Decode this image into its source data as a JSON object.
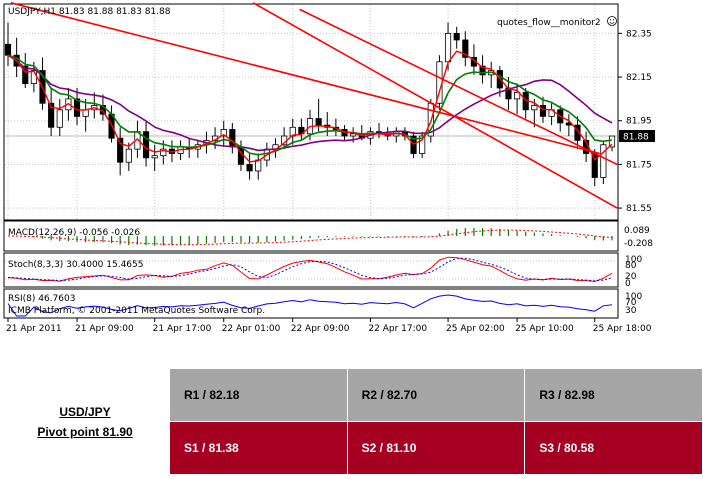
{
  "chart_data": {
    "type": "candlestick",
    "symbol_label": "USDJPY,H1  81.83 81.88 81.83 81.88",
    "watermark": "quotes_flow__monitor2",
    "current_price_label": "81.88",
    "current_price": 81.88,
    "ylim": [
      81.5,
      82.48
    ],
    "price_ticks": [
      "82.35",
      "82.15",
      "81.95",
      "81.75",
      "81.55"
    ],
    "x_ticks": [
      "21 Apr 2011",
      "21 Apr 09:00",
      "21 Apr 17:00",
      "22 Apr 01:00",
      "22 Apr 09:00",
      "22 Apr 17:00",
      "25 Apr 02:00",
      "25 Apr 10:00",
      "25 Apr 18:00"
    ],
    "candles": [
      [
        82.3,
        82.4,
        82.2,
        82.25
      ],
      [
        82.25,
        82.33,
        82.15,
        82.2
      ],
      [
        82.2,
        82.26,
        82.1,
        82.12
      ],
      [
        82.12,
        82.22,
        82.08,
        82.18
      ],
      [
        82.18,
        82.24,
        82.0,
        82.03
      ],
      [
        82.03,
        82.1,
        81.88,
        81.92
      ],
      [
        81.92,
        82.05,
        81.88,
        82.0
      ],
      [
        82.0,
        82.1,
        81.95,
        82.05
      ],
      [
        82.05,
        82.1,
        81.93,
        81.97
      ],
      [
        81.97,
        82.05,
        81.9,
        82.0
      ],
      [
        82.0,
        82.08,
        81.96,
        82.02
      ],
      [
        82.02,
        82.07,
        81.95,
        81.98
      ],
      [
        81.98,
        82.02,
        81.85,
        81.87
      ],
      [
        81.87,
        81.92,
        81.7,
        81.76
      ],
      [
        81.76,
        81.85,
        81.72,
        81.82
      ],
      [
        81.82,
        81.95,
        81.78,
        81.9
      ],
      [
        81.9,
        81.95,
        81.74,
        81.78
      ],
      [
        81.78,
        81.84,
        81.72,
        81.79
      ],
      [
        81.79,
        81.86,
        81.75,
        81.82
      ],
      [
        81.82,
        81.86,
        81.76,
        81.8
      ],
      [
        81.8,
        81.86,
        81.77,
        81.83
      ],
      [
        81.83,
        81.87,
        81.78,
        81.82
      ],
      [
        81.82,
        81.86,
        81.78,
        81.84
      ],
      [
        81.84,
        81.9,
        81.8,
        81.86
      ],
      [
        81.86,
        81.92,
        81.82,
        81.88
      ],
      [
        81.88,
        81.95,
        81.83,
        81.91
      ],
      [
        81.91,
        81.94,
        81.8,
        81.83
      ],
      [
        81.83,
        81.86,
        81.72,
        81.75
      ],
      [
        81.75,
        81.8,
        81.68,
        81.72
      ],
      [
        81.72,
        81.8,
        81.68,
        81.77
      ],
      [
        81.77,
        81.85,
        81.74,
        81.82
      ],
      [
        81.82,
        81.87,
        81.78,
        81.84
      ],
      [
        81.84,
        81.92,
        81.82,
        81.88
      ],
      [
        81.88,
        81.96,
        81.84,
        81.92
      ],
      [
        81.92,
        81.96,
        81.86,
        81.89
      ],
      [
        81.89,
        82.0,
        81.86,
        81.96
      ],
      [
        81.96,
        82.05,
        81.9,
        81.93
      ],
      [
        81.93,
        81.99,
        81.88,
        81.92
      ],
      [
        81.92,
        81.96,
        81.88,
        81.91
      ],
      [
        81.91,
        81.93,
        81.86,
        81.88
      ],
      [
        81.88,
        81.92,
        81.85,
        81.89
      ],
      [
        81.89,
        81.93,
        81.86,
        81.87
      ],
      [
        81.87,
        81.92,
        81.84,
        81.9
      ],
      [
        81.9,
        81.94,
        81.87,
        81.89
      ],
      [
        81.89,
        81.92,
        81.86,
        81.88
      ],
      [
        81.88,
        81.92,
        81.85,
        81.9
      ],
      [
        81.9,
        81.92,
        81.86,
        81.88
      ],
      [
        81.88,
        81.9,
        81.78,
        81.8
      ],
      [
        81.8,
        81.9,
        81.78,
        81.88
      ],
      [
        81.88,
        82.05,
        81.85,
        82.03
      ],
      [
        82.03,
        82.25,
        82.0,
        82.22
      ],
      [
        82.22,
        82.4,
        82.18,
        82.35
      ],
      [
        82.35,
        82.38,
        82.28,
        82.32
      ],
      [
        82.32,
        82.36,
        82.2,
        82.24
      ],
      [
        82.24,
        82.3,
        82.16,
        82.2
      ],
      [
        82.2,
        82.25,
        82.12,
        82.16
      ],
      [
        82.16,
        82.22,
        82.1,
        82.18
      ],
      [
        82.18,
        82.2,
        82.06,
        82.1
      ],
      [
        82.1,
        82.15,
        82.0,
        82.05
      ],
      [
        82.05,
        82.12,
        81.98,
        82.08
      ],
      [
        82.08,
        82.1,
        81.96,
        82.0
      ],
      [
        82.0,
        82.05,
        81.92,
        82.02
      ],
      [
        82.02,
        82.06,
        81.94,
        81.97
      ],
      [
        81.97,
        82.03,
        81.93,
        82.0
      ],
      [
        82.0,
        82.02,
        81.9,
        81.94
      ],
      [
        81.94,
        81.98,
        81.88,
        81.93
      ],
      [
        81.93,
        81.97,
        81.82,
        81.86
      ],
      [
        81.86,
        81.9,
        81.76,
        81.8
      ],
      [
        81.8,
        81.82,
        81.65,
        81.69
      ],
      [
        81.69,
        81.86,
        81.66,
        81.84
      ],
      [
        81.83,
        81.88,
        81.81,
        81.88
      ]
    ],
    "channel_lines": [
      {
        "from": [
          0.33,
          82.49
        ],
        "to": [
          68.6,
          81.8
        ]
      },
      {
        "from": [
          33.8,
          82.46
        ],
        "to": [
          70.6,
          81.75
        ]
      },
      {
        "from": [
          28.4,
          82.49
        ],
        "to": [
          70.6,
          81.55
        ]
      }
    ],
    "macd": {
      "label": "MACD(12,26,9) -0.056 -0.026",
      "ticks": [
        "0.089",
        "-0.208"
      ]
    },
    "stoch": {
      "label": "Stoch(8,3,3) 30.4000 15.4655",
      "ticks": [
        "100",
        "80",
        "20",
        "0"
      ]
    },
    "rsi": {
      "label": "RSI(8) 46.7603",
      "ticks": [
        "100",
        "70",
        "30"
      ]
    },
    "copyright": "ICMB Platform, © 2001-2011 MetaQuotes Software Corp.",
    "colors": {
      "ma_fast": "#ff0000",
      "ma_mid": "#008000",
      "ma_slow": "#800080",
      "channel": "#ff0000",
      "rsi": "#0000ff",
      "stoch_main": "#ff0000",
      "stoch_signal": "#0000ff",
      "macd_bars": "#008000"
    }
  },
  "pivot": {
    "symbol": "USD/JPY",
    "pivot_label": "Pivot point 81.90",
    "r1": "R1 / 82.18",
    "r2": "R2 / 82.70",
    "r3": "R3 / 82.98",
    "s1": "S1 / 81.38",
    "s2": "S2 / 81.10",
    "s3": "S3 / 80.58",
    "colors": {
      "resistance_bg": "#a6a6a6",
      "support_bg": "#a50021"
    }
  }
}
